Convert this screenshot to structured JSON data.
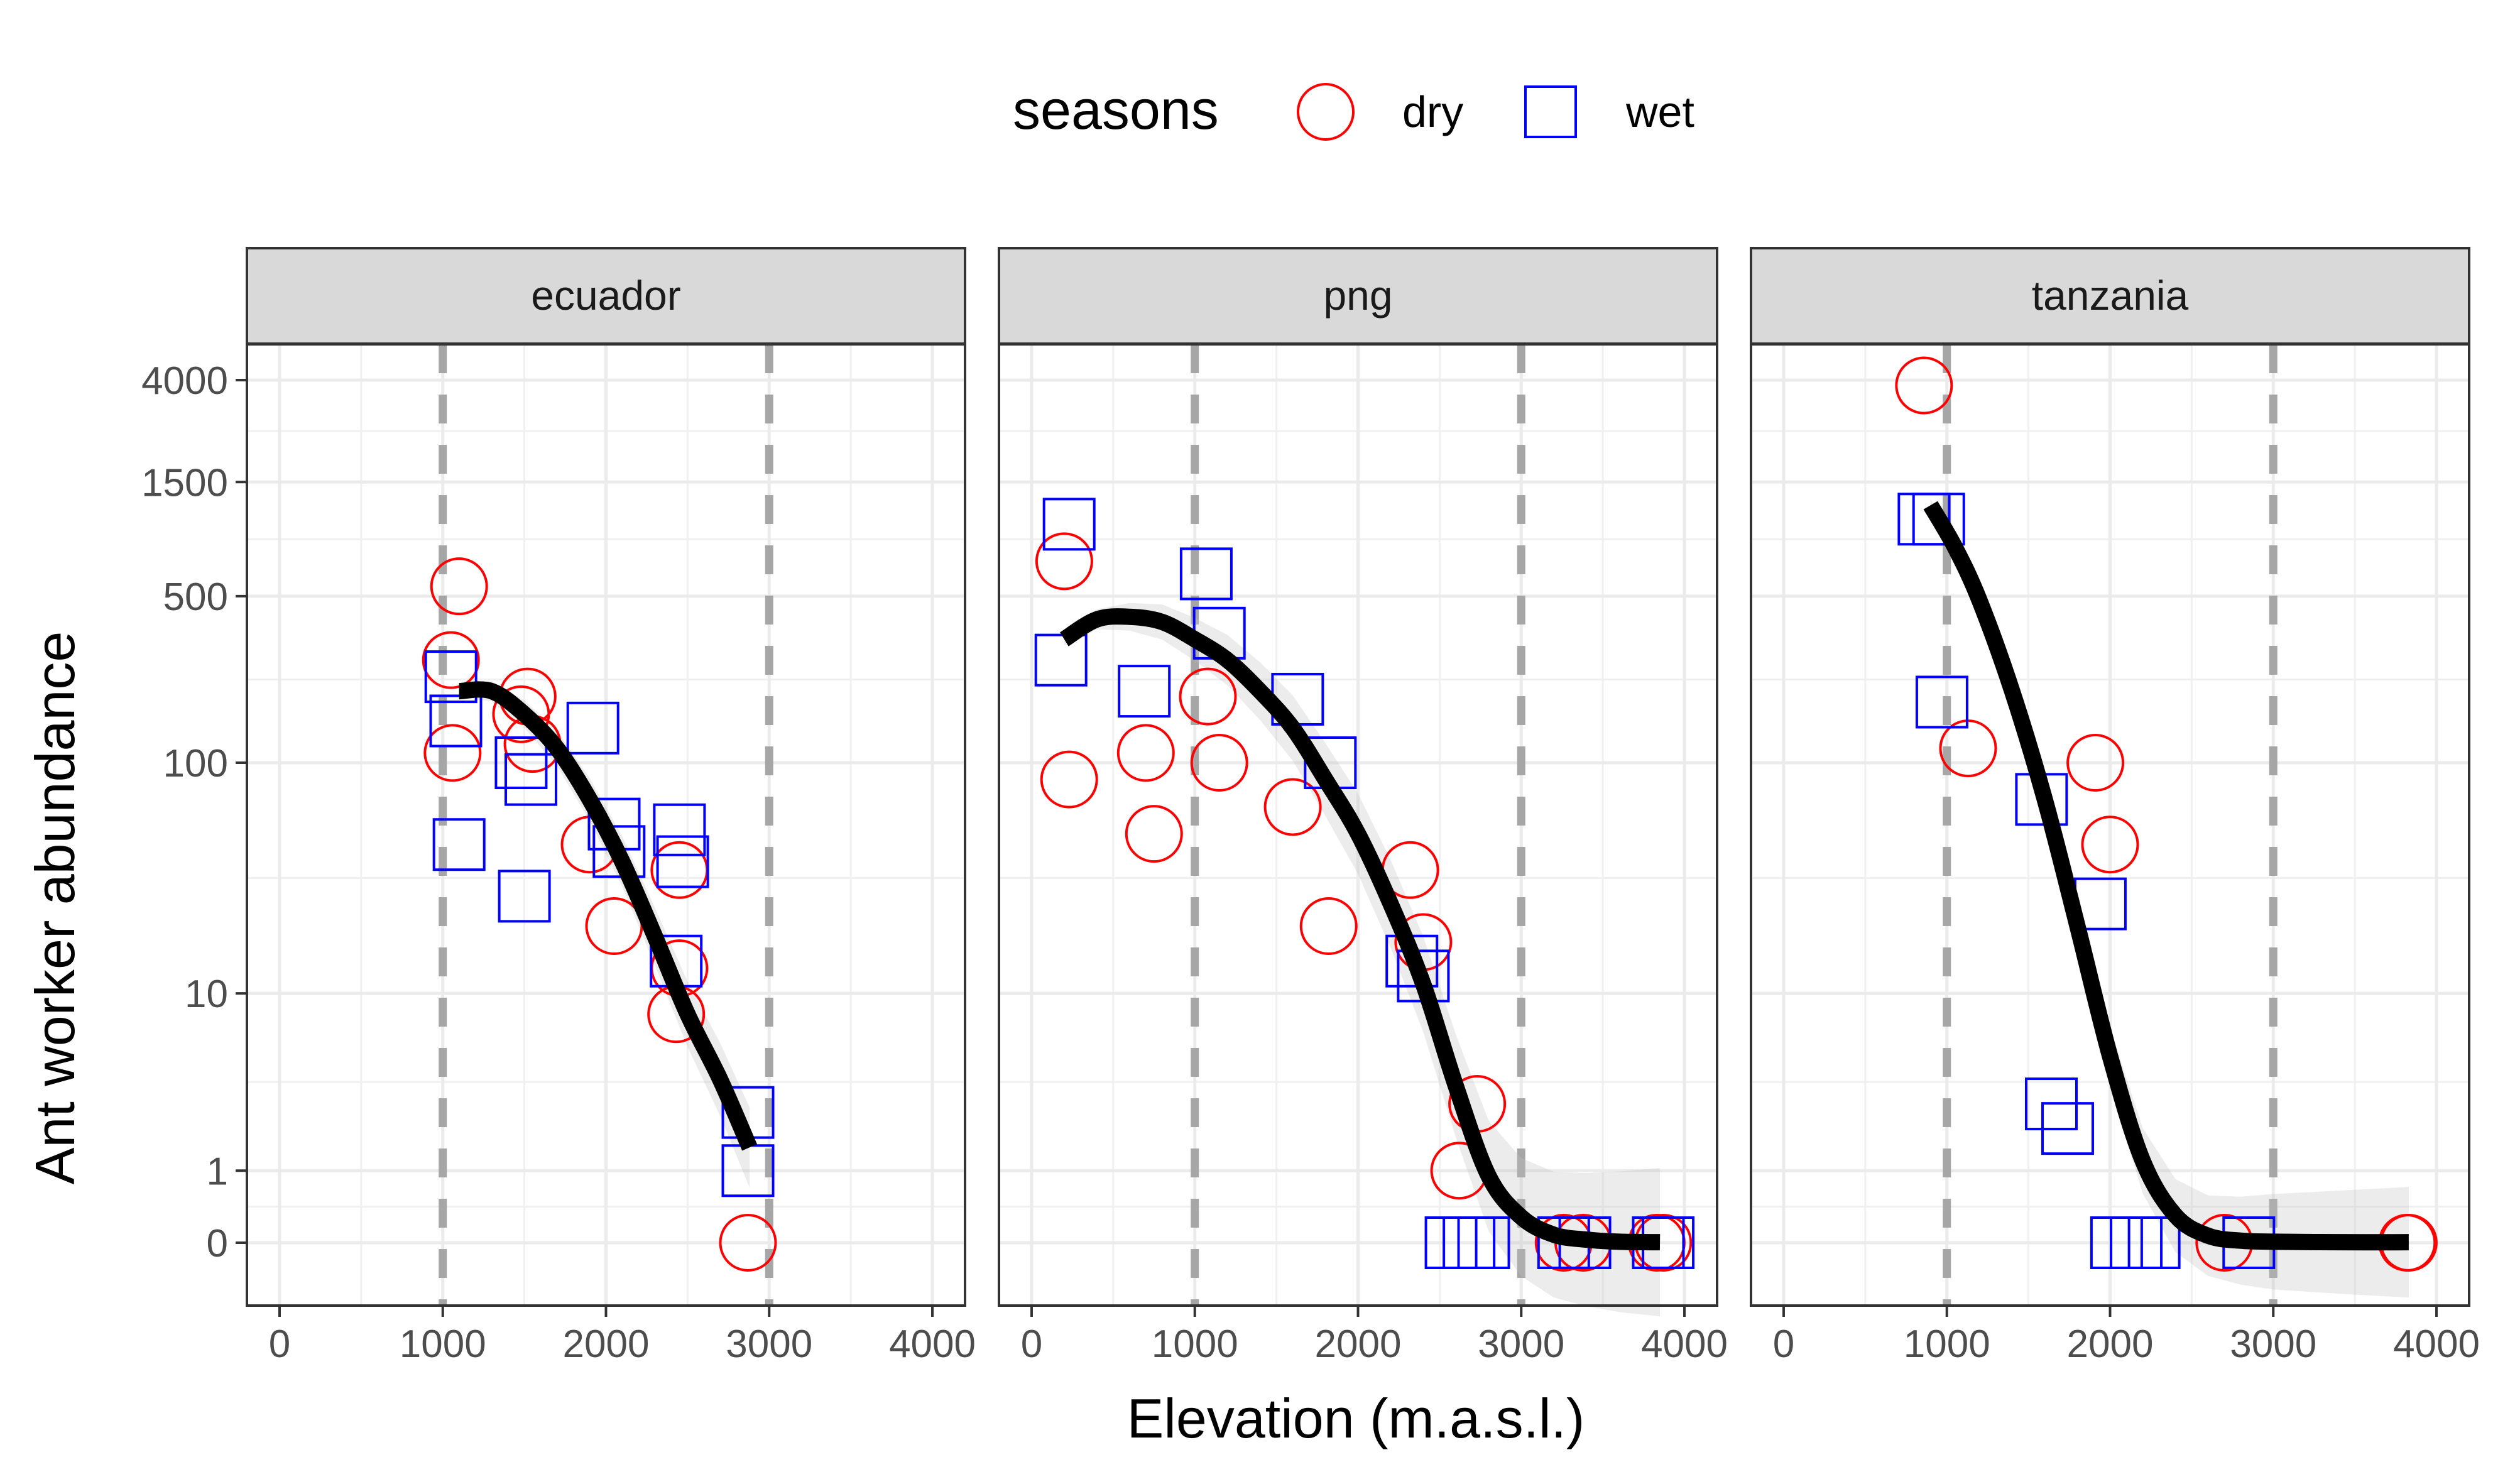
{
  "chart_data": {
    "type": "scatter",
    "xlabel": "Elevation (m.a.s.l.)",
    "ylabel": "Ant worker abundance",
    "y_scale": "pseudo-log (log10(y+1))",
    "xlim": [
      -200,
      4200
    ],
    "ylim": [
      0,
      8000
    ],
    "x_ticks": [
      0,
      1000,
      2000,
      3000,
      4000
    ],
    "x_tick_labels": [
      "0",
      "1000",
      "2000",
      "3000",
      "4000"
    ],
    "y_ticks": [
      0,
      1,
      10,
      100,
      500,
      1500,
      4000
    ],
    "y_tick_labels": [
      "0",
      "1",
      "10",
      "100",
      "500",
      "1500",
      "4000"
    ],
    "reference_lines_x": [
      1000,
      3000
    ],
    "grid": true,
    "legend": {
      "title": "seasons",
      "position": "top",
      "entries": [
        {
          "label": "dry",
          "shape": "circle",
          "color": "#ff0000"
        },
        {
          "label": "wet",
          "shape": "square",
          "color": "#0000ff"
        }
      ]
    },
    "panels": [
      {
        "name": "ecuador",
        "series": [
          {
            "name": "dry",
            "points": [
              [
                1100,
                550
              ],
              [
                1050,
                270
              ],
              [
                1060,
                110
              ],
              [
                1520,
                190
              ],
              [
                1480,
                160
              ],
              [
                1550,
                120
              ],
              [
                1900,
                45
              ],
              [
                2050,
                20
              ],
              [
                2450,
                35
              ],
              [
                2450,
                13
              ],
              [
                2430,
                8
              ],
              [
                2870,
                0
              ]
            ]
          },
          {
            "name": "wet",
            "points": [
              [
                1050,
                230
              ],
              [
                1080,
                150
              ],
              [
                1100,
                45
              ],
              [
                1480,
                100
              ],
              [
                1540,
                85
              ],
              [
                1500,
                27
              ],
              [
                1920,
                140
              ],
              [
                2050,
                55
              ],
              [
                2080,
                42
              ],
              [
                2450,
                52
              ],
              [
                2470,
                38
              ],
              [
                2430,
                14
              ],
              [
                2870,
                2.5
              ],
              [
                2870,
                1
              ]
            ]
          }
        ],
        "fit": [
          [
            1100,
            200
          ],
          [
            1300,
            200
          ],
          [
            1500,
            160
          ],
          [
            1700,
            115
          ],
          [
            1900,
            70
          ],
          [
            2100,
            38
          ],
          [
            2300,
            18
          ],
          [
            2500,
            8
          ],
          [
            2700,
            3.8
          ],
          [
            2880,
            1.5
          ]
        ]
      },
      {
        "name": "png",
        "series": [
          {
            "name": "dry",
            "points": [
              [
                200,
                700
              ],
              [
                230,
                85
              ],
              [
                700,
                110
              ],
              [
                750,
                50
              ],
              [
                1080,
                190
              ],
              [
                1150,
                100
              ],
              [
                1600,
                65
              ],
              [
                1820,
                20
              ],
              [
                2320,
                35
              ],
              [
                2400,
                17
              ],
              [
                2730,
                2.8
              ],
              [
                2620,
                1
              ],
              [
                3260,
                0
              ],
              [
                3380,
                0
              ],
              [
                3830,
                0
              ],
              [
                3870,
                0
              ]
            ]
          },
          {
            "name": "wet",
            "points": [
              [
                230,
                1000
              ],
              [
                180,
                270
              ],
              [
                690,
                200
              ],
              [
                1070,
                620
              ],
              [
                1150,
                350
              ],
              [
                1630,
                185
              ],
              [
                1830,
                100
              ],
              [
                2330,
                14
              ],
              [
                2400,
                12
              ],
              [
                2570,
                0
              ],
              [
                2680,
                0
              ],
              [
                2770,
                0
              ],
              [
                3260,
                0
              ],
              [
                3390,
                0
              ],
              [
                3840,
                0
              ],
              [
                3900,
                0
              ]
            ]
          }
        ],
        "fit": [
          [
            200,
            330
          ],
          [
            400,
            400
          ],
          [
            600,
            410
          ],
          [
            800,
            390
          ],
          [
            1000,
            330
          ],
          [
            1200,
            270
          ],
          [
            1400,
            200
          ],
          [
            1600,
            140
          ],
          [
            1800,
            85
          ],
          [
            2000,
            50
          ],
          [
            2200,
            25
          ],
          [
            2400,
            11
          ],
          [
            2600,
            3.5
          ],
          [
            2800,
            0.9
          ],
          [
            3000,
            0.28
          ],
          [
            3200,
            0.08
          ],
          [
            3400,
            0.03
          ],
          [
            3600,
            0.01
          ],
          [
            3850,
            0.005
          ]
        ]
      },
      {
        "name": "tanzania",
        "series": [
          {
            "name": "dry",
            "points": [
              [
                860,
                3800
              ],
              [
                1130,
                115
              ],
              [
                1910,
                100
              ],
              [
                2000,
                45
              ],
              [
                2700,
                0
              ],
              [
                3820,
                0
              ],
              [
                3830,
                0
              ]
            ]
          },
          {
            "name": "wet",
            "points": [
              [
                860,
                1050
              ],
              [
                950,
                1050
              ],
              [
                970,
                180
              ],
              [
                1580,
                70
              ],
              [
                1940,
                25
              ],
              [
                1640,
                2.8
              ],
              [
                1740,
                2
              ],
              [
                2040,
                0
              ],
              [
                2160,
                0
              ],
              [
                2270,
                0
              ],
              [
                2850,
                0
              ]
            ]
          }
        ],
        "fit": [
          [
            900,
            1200
          ],
          [
            1050,
            800
          ],
          [
            1200,
            480
          ],
          [
            1400,
            200
          ],
          [
            1600,
            70
          ],
          [
            1800,
            20
          ],
          [
            2000,
            5
          ],
          [
            2200,
            1.2
          ],
          [
            2400,
            0.3
          ],
          [
            2600,
            0.07
          ],
          [
            2800,
            0.02
          ],
          [
            3000,
            0.01
          ],
          [
            3400,
            0.005
          ],
          [
            3830,
            0.005
          ]
        ]
      }
    ]
  }
}
